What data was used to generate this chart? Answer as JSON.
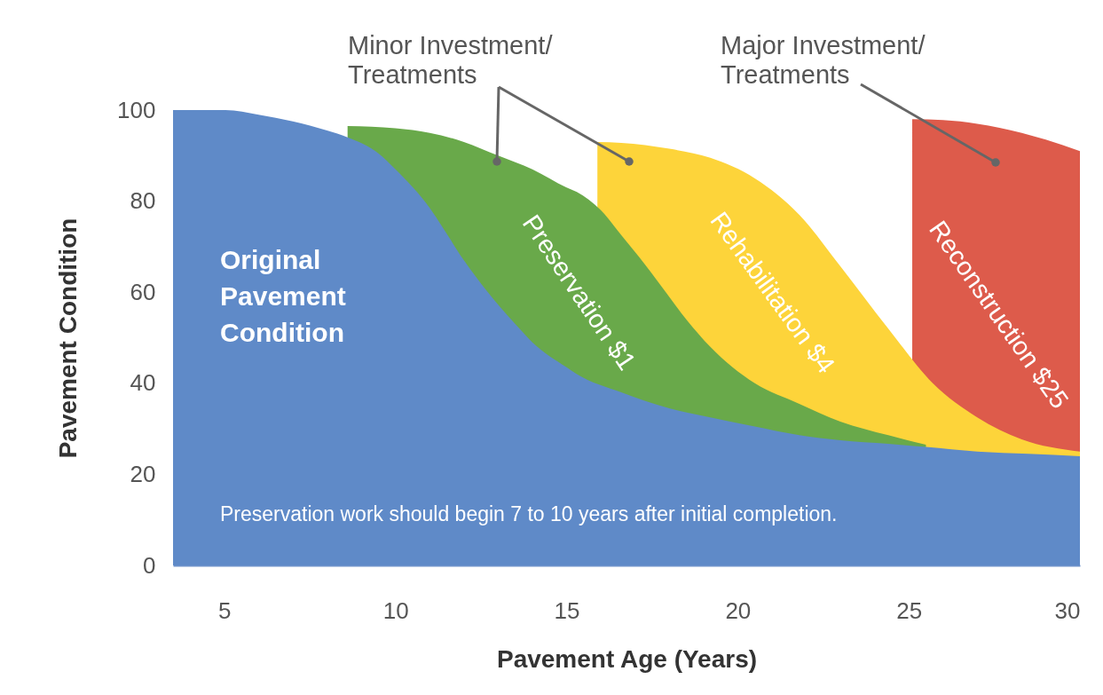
{
  "chart_data": {
    "type": "area",
    "xlabel": "Pavement Age (Years)",
    "ylabel": "Pavement Condition",
    "xlim": [
      3.5,
      30
    ],
    "xticks": [
      5,
      10,
      15,
      20,
      25,
      30
    ],
    "ylim": [
      0,
      100
    ],
    "yticks": [
      0,
      20,
      40,
      60,
      80,
      100
    ],
    "grid": false,
    "series": [
      {
        "name": "Original Pavement Condition",
        "color": "#5f8ac8",
        "x": [
          3.5,
          5,
          6,
          7,
          8,
          8.6,
          9.5,
          10,
          11,
          11.4,
          12,
          12.7,
          13.5,
          14,
          15,
          15.3,
          16.6,
          18,
          19.2,
          20.5,
          21.8,
          23,
          24.4,
          25.5,
          27,
          28.5,
          30
        ],
        "values": [
          100,
          100,
          99,
          97.5,
          95.5,
          94,
          90.5,
          87,
          78.5,
          74,
          67,
          60,
          53,
          49,
          43.5,
          42,
          38,
          34.5,
          32.5,
          30.5,
          28.6,
          27.5,
          26.7,
          26,
          25,
          24.5,
          24
        ]
      },
      {
        "name": "Preservation $1",
        "color": "#69a94a",
        "x": [
          8.6,
          10,
          11,
          12,
          13,
          14,
          15,
          15.3,
          16,
          16.6,
          17.3,
          17.9,
          18.5,
          19.2,
          20.5,
          21.8,
          23,
          24.4,
          25.5
        ],
        "values": [
          96.5,
          96,
          95,
          93,
          90,
          87,
          83,
          82,
          78,
          72.5,
          66,
          60,
          54,
          48,
          40,
          35.5,
          31.6,
          28.6,
          26.5
        ]
      },
      {
        "name": "Rehabilitation $4",
        "color": "#fdd43a",
        "x": [
          15.9,
          16.6,
          18,
          19.2,
          20.5,
          21.8,
          23,
          24.4,
          25.7,
          27,
          28.3,
          30
        ],
        "values": [
          93,
          92.8,
          91.5,
          89.5,
          85,
          77,
          65.7,
          52,
          40,
          32.5,
          27.7,
          25
        ]
      },
      {
        "name": "Reconstruction $25",
        "color": "#dd5b4b",
        "x": [
          25.1,
          26,
          27,
          28.3,
          29,
          30
        ],
        "values": [
          98,
          97.8,
          97,
          95,
          93.5,
          91
        ]
      }
    ],
    "annotations": [
      "Minor Investment/\nTreatments",
      "Major Investment/\nTreatments",
      "Preservation work should begin 7 to 10 years after initial completion."
    ]
  }
}
